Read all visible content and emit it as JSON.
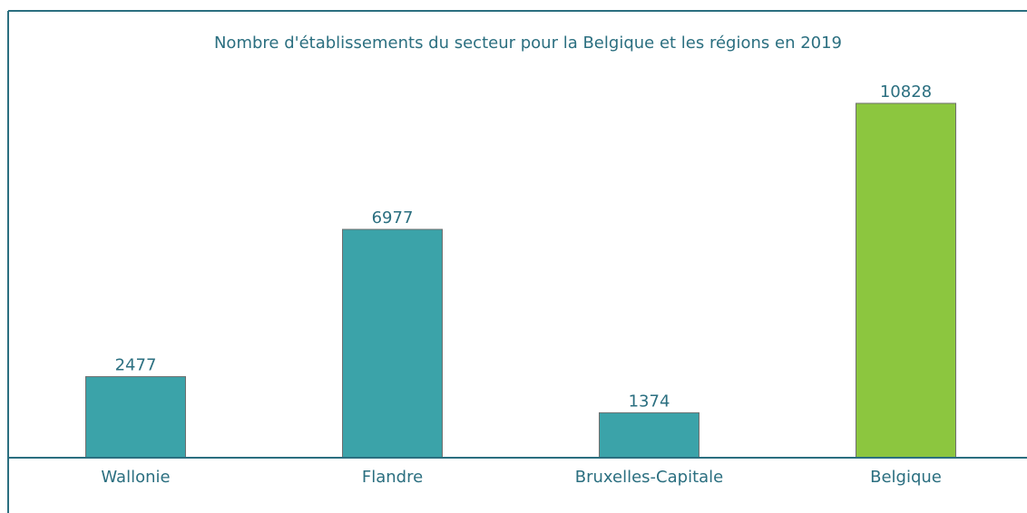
{
  "chart_data": {
    "type": "bar",
    "title": "Nombre d'établissements du secteur pour la Belgique et les régions en 2019",
    "categories": [
      "Wallonie",
      "Flandre",
      "Bruxelles-Capitale",
      "Belgique"
    ],
    "values": [
      2477,
      6977,
      1374,
      10828
    ],
    "colors": [
      "#3ba3a9",
      "#3ba3a9",
      "#3ba3a9",
      "#8cc63f"
    ]
  }
}
